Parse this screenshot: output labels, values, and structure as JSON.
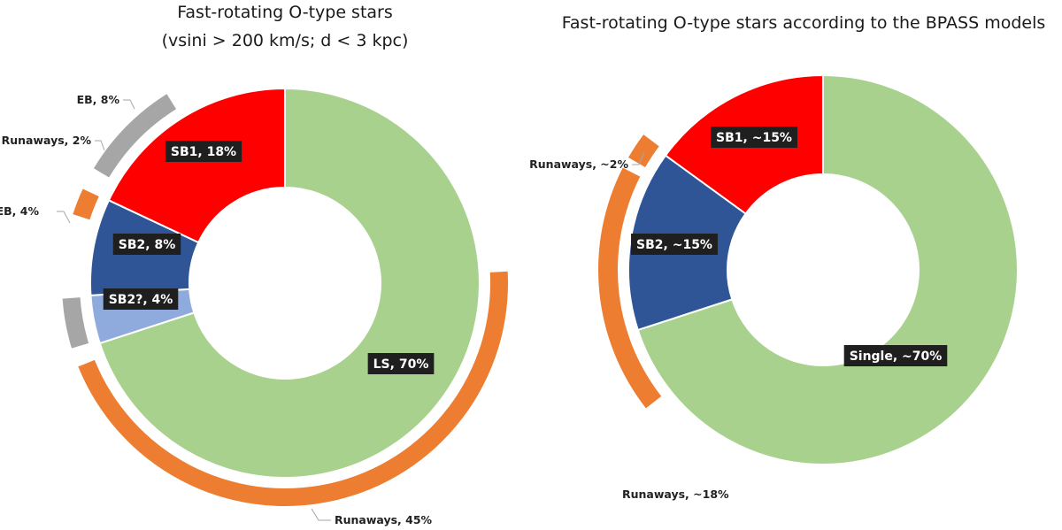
{
  "chart_data": [
    {
      "type": "pie",
      "title_lines": [
        "Fast-rotating O-type stars",
        "(vsini > 200 km/s; d < 3 kpc)"
      ],
      "slices": [
        {
          "label": "LS,  70%",
          "value": 70,
          "color": "#a9d18e"
        },
        {
          "label": "SB2?, 4%",
          "value": 4,
          "color": "#8faadc"
        },
        {
          "label": "SB2, 8%",
          "value": 8,
          "color": "#2f5597"
        },
        {
          "label": "SB1, 18%",
          "value": 18,
          "color": "#ff0000"
        }
      ],
      "outer_arcs": [
        {
          "label": "Runaways, 45%",
          "value": 45,
          "color": "#ed7d31"
        },
        {
          "label": "EB, 4%",
          "value": 4,
          "color": "#a6a6a6"
        },
        {
          "label": "Runaways, 2%",
          "value": 2,
          "color": "#ed7d31"
        },
        {
          "label": "EB, 8%",
          "value": 8,
          "color": "#a6a6a6"
        }
      ]
    },
    {
      "type": "pie",
      "title_lines": [
        "Fast-rotating O-type stars according to the BPASS models"
      ],
      "slices": [
        {
          "label": "Single, ~70%",
          "value": 70,
          "color": "#a9d18e"
        },
        {
          "label": "SB2, ~15%",
          "value": 15,
          "color": "#2f5597"
        },
        {
          "label": "SB1, ~15%",
          "value": 15,
          "color": "#ff0000"
        }
      ],
      "outer_arcs": [
        {
          "label": "Runaways, ~18%",
          "value": 18,
          "color": "#ed7d31"
        },
        {
          "label": "Runaways, ~2%",
          "value": 2,
          "color": "#ed7d31"
        }
      ]
    }
  ]
}
